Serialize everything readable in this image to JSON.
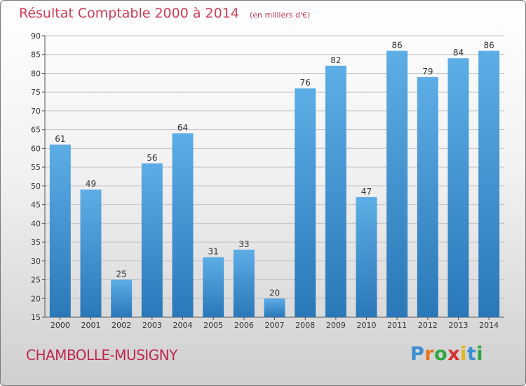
{
  "header": {
    "title": "Résultat Comptable 2000 à 2014",
    "subtitle": "(en milliers d'€)"
  },
  "footer": {
    "commune": "CHAMBOLLE-MUSIGNY",
    "logo_letters": [
      "P",
      "r",
      "o",
      "x",
      "i",
      "t",
      "i"
    ],
    "logo_colors": [
      "#3a8ed3",
      "#e8731c",
      "#2ea640",
      "#d9302c",
      "#e0b81a",
      "#3a8ed3",
      "#2ea640"
    ]
  },
  "colors": {
    "bar_light": "#5dade6",
    "bar_dark": "#2a78b8",
    "grid": "#c4c4c4",
    "text": "#333333"
  },
  "chart_data": {
    "type": "bar",
    "title": "Résultat Comptable 2000 à 2014",
    "xlabel": "",
    "ylabel": "",
    "categories": [
      "2000",
      "2001",
      "2002",
      "2003",
      "2004",
      "2005",
      "2006",
      "2007",
      "2008",
      "2009",
      "2010",
      "2011",
      "2012",
      "2013",
      "2014"
    ],
    "values": [
      61,
      49,
      25,
      56,
      64,
      31,
      33,
      20,
      76,
      82,
      47,
      86,
      79,
      84,
      86
    ],
    "ylim": [
      15,
      90
    ],
    "yticks": [
      15,
      20,
      25,
      30,
      35,
      40,
      45,
      50,
      55,
      60,
      65,
      70,
      75,
      80,
      85,
      90
    ],
    "grid": true
  }
}
